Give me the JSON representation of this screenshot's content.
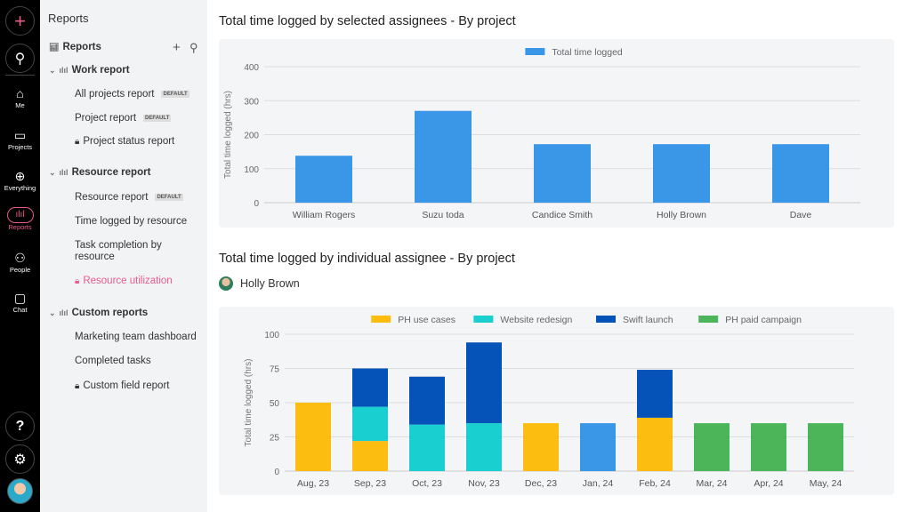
{
  "rail": {
    "items": [
      {
        "label": "Me",
        "icon": "home-icon"
      },
      {
        "label": "Projects",
        "icon": "folder-icon"
      },
      {
        "label": "Everything",
        "icon": "globe-icon"
      },
      {
        "label": "Reports",
        "icon": "chart-icon"
      },
      {
        "label": "People",
        "icon": "people-icon"
      },
      {
        "label": "Chat",
        "icon": "chat-icon"
      }
    ],
    "accent": "#e85b8b"
  },
  "sidebar": {
    "header": "Reports",
    "reports_label": "Reports",
    "default_tag": "DEFAULT",
    "groups": [
      {
        "label": "Work report",
        "items": [
          {
            "label": "All projects report",
            "default": true
          },
          {
            "label": "Project report",
            "default": true
          },
          {
            "label": "Project status report",
            "locked": true
          }
        ]
      },
      {
        "label": "Resource report",
        "items": [
          {
            "label": "Resource report",
            "default": true
          },
          {
            "label": "Time logged by resource"
          },
          {
            "label": "Task completion by resource"
          },
          {
            "label": "Resource utilization",
            "locked": true,
            "active": true
          }
        ]
      },
      {
        "label": "Custom reports",
        "items": [
          {
            "label": "Marketing team dashboard"
          },
          {
            "label": "Completed tasks"
          },
          {
            "label": "Custom field report",
            "locked": true
          }
        ]
      }
    ]
  },
  "main": {
    "title1": "Total time logged by selected assignees - By project",
    "title2": "Total time logged by individual assignee - By project",
    "assignee": "Holly Brown"
  },
  "chart_data": [
    {
      "type": "bar",
      "title": "Total time logged by selected assignees - By project",
      "ylabel": "Total time logged (hrs)",
      "ylim": [
        0,
        400
      ],
      "yticks": [
        0,
        100,
        200,
        300,
        400
      ],
      "categories": [
        "William Rogers",
        "Suzu toda",
        "Candice Smith",
        "Holly Brown",
        "Dave"
      ],
      "series": [
        {
          "name": "Total time logged",
          "color": "#3a97e8",
          "values": [
            138,
            270,
            172,
            172,
            172
          ]
        }
      ],
      "legend": "top",
      "grid": true
    },
    {
      "type": "bar",
      "stacked": true,
      "title": "Total time logged by individual assignee - By project",
      "ylabel": "Total time logged (hrs)",
      "ylim": [
        0,
        100
      ],
      "yticks": [
        0,
        25,
        50,
        75,
        100
      ],
      "categories": [
        "Aug, 23",
        "Sep, 23",
        "Oct, 23",
        "Nov, 23",
        "Dec, 23",
        "Jan, 24",
        "Feb, 24",
        "Mar, 24",
        "Apr, 24",
        "May, 24"
      ],
      "series": [
        {
          "name": "PH use cases",
          "color": "#fdbd10",
          "values": [
            50,
            22,
            0,
            0,
            35,
            0,
            39,
            0,
            0,
            0
          ]
        },
        {
          "name": "Website redesign",
          "color": "#19cfcf",
          "values": [
            0,
            25,
            34,
            35,
            0,
            0,
            0,
            0,
            0,
            0
          ]
        },
        {
          "name": "Swift launch",
          "color": "#0553b8",
          "values": [
            0,
            28,
            35,
            59,
            0,
            0,
            35,
            0,
            0,
            0
          ]
        },
        {
          "name": "PH paid campaign",
          "color": "#4cb55a",
          "values": [
            0,
            0,
            0,
            0,
            0,
            0,
            0,
            35,
            35,
            35
          ]
        },
        {
          "color": "#3a97e8",
          "values": [
            0,
            0,
            0,
            0,
            0,
            35,
            0,
            0,
            0,
            0
          ]
        }
      ],
      "legend": "top",
      "grid": true
    }
  ]
}
